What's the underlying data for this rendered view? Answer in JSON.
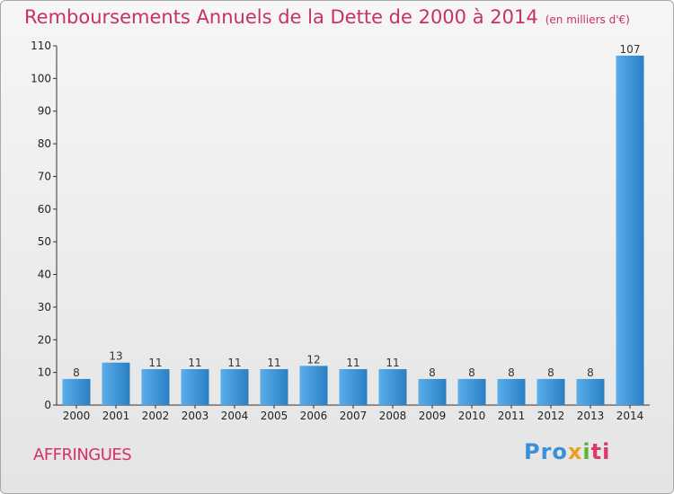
{
  "title": "Remboursements Annuels de la Dette de 2000 à 2014",
  "unit_note": "(en milliers d'€)",
  "place_name": "AFFRINGUES",
  "logo": {
    "p1": "Pro",
    "p2": "x",
    "p3": "i",
    "p4": "ti"
  },
  "chart_data": {
    "type": "bar",
    "title": "Remboursements Annuels de la Dette de 2000 à 2014",
    "xlabel": "",
    "ylabel": "",
    "categories": [
      "2000",
      "2001",
      "2002",
      "2003",
      "2004",
      "2005",
      "2006",
      "2007",
      "2008",
      "2009",
      "2010",
      "2011",
      "2012",
      "2013",
      "2014"
    ],
    "values": [
      8,
      13,
      11,
      11,
      11,
      11,
      12,
      11,
      11,
      8,
      8,
      8,
      8,
      8,
      107
    ],
    "ylim": [
      0,
      110
    ],
    "yticks": [
      0,
      10,
      20,
      30,
      40,
      50,
      60,
      70,
      80,
      90,
      100,
      110
    ],
    "grid": false,
    "colors": {
      "bar_light": "#5aaeea",
      "bar_dark": "#2a7fc4",
      "axis": "#333333"
    }
  }
}
